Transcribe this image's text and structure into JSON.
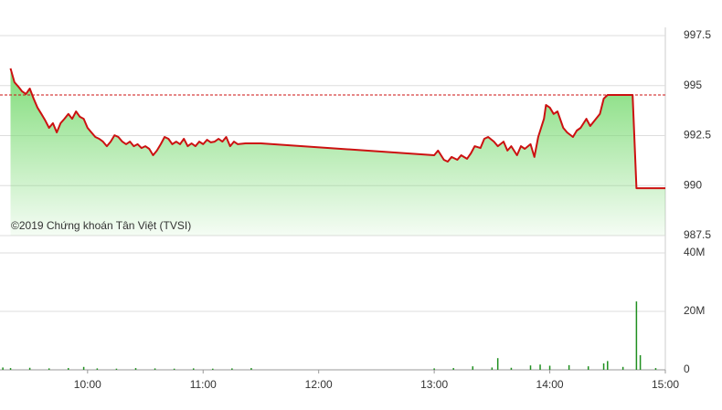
{
  "chart_data": [
    {
      "type": "line",
      "annotation": "©2019 Chứng khoán Tân Việt (TVSI)",
      "color": "#cc1111",
      "fill_color": "#7fdc78",
      "reference": 994.53,
      "reference_color": "#cc1111",
      "xlim": [
        "09:15",
        "15:00"
      ],
      "ylim": [
        987.5,
        997.5
      ],
      "yticks": [
        997.5,
        995,
        992.5,
        990,
        987.5
      ],
      "grid": true,
      "x": [
        "09:20",
        "09:22",
        "09:24",
        "09:26",
        "09:28",
        "09:30",
        "09:32",
        "09:34",
        "09:36",
        "09:38",
        "09:40",
        "09:42",
        "09:44",
        "09:46",
        "09:48",
        "09:50",
        "09:52",
        "09:54",
        "09:56",
        "09:58",
        "10:00",
        "10:02",
        "10:04",
        "10:06",
        "10:08",
        "10:10",
        "10:12",
        "10:14",
        "10:16",
        "10:18",
        "10:20",
        "10:22",
        "10:24",
        "10:26",
        "10:28",
        "10:30",
        "10:32",
        "10:34",
        "10:36",
        "10:38",
        "10:40",
        "10:42",
        "10:44",
        "10:46",
        "10:48",
        "10:50",
        "10:52",
        "10:54",
        "10:56",
        "10:58",
        "11:00",
        "11:02",
        "11:04",
        "11:06",
        "11:08",
        "11:10",
        "11:12",
        "11:14",
        "11:16",
        "11:18",
        "11:22",
        "11:30",
        "13:00",
        "13:02",
        "13:05",
        "13:07",
        "13:09",
        "13:12",
        "13:14",
        "13:17",
        "13:19",
        "13:21",
        "13:24",
        "13:26",
        "13:28",
        "13:31",
        "13:33",
        "13:36",
        "13:38",
        "13:40",
        "13:43",
        "13:45",
        "13:47",
        "13:50",
        "13:52",
        "13:54",
        "13:57",
        "13:58",
        "14:00",
        "14:02",
        "14:04",
        "14:07",
        "14:09",
        "14:12",
        "14:14",
        "14:16",
        "14:19",
        "14:21",
        "14:24",
        "14:26",
        "14:28",
        "14:30",
        "14:43",
        "14:45",
        "15:00"
      ],
      "values": [
        995.86,
        995.17,
        994.95,
        994.71,
        994.58,
        994.85,
        994.35,
        993.9,
        993.58,
        993.26,
        992.89,
        993.12,
        992.66,
        993.12,
        993.34,
        993.58,
        993.34,
        993.71,
        993.44,
        993.34,
        992.89,
        992.66,
        992.43,
        992.34,
        992.2,
        991.97,
        992.2,
        992.52,
        992.43,
        992.2,
        992.07,
        992.2,
        991.97,
        992.07,
        991.88,
        991.97,
        991.84,
        991.52,
        991.75,
        992.07,
        992.43,
        992.34,
        992.07,
        992.2,
        992.07,
        992.34,
        991.97,
        992.11,
        991.97,
        992.2,
        992.07,
        992.29,
        992.16,
        992.2,
        992.34,
        992.2,
        992.43,
        991.97,
        992.2,
        992.07,
        992.11,
        992.11,
        991.52,
        991.75,
        991.29,
        991.2,
        991.43,
        991.29,
        991.52,
        991.34,
        991.61,
        991.97,
        991.88,
        992.34,
        992.43,
        992.2,
        991.97,
        992.2,
        991.75,
        991.97,
        991.52,
        991.97,
        991.84,
        992.07,
        991.43,
        992.43,
        993.34,
        994.03,
        993.9,
        993.58,
        993.71,
        992.89,
        992.66,
        992.43,
        992.75,
        992.89,
        993.34,
        992.98,
        993.34,
        993.58,
        994.35,
        994.53,
        994.53,
        989.87,
        989.87
      ]
    },
    {
      "type": "bar",
      "color": "#1f8f1f",
      "xlim": [
        "09:15",
        "15:00"
      ],
      "xticks": [
        "10:00",
        "11:00",
        "12:00",
        "13:00",
        "14:00",
        "15:00"
      ],
      "ylim": [
        0,
        40
      ],
      "yticks": [
        {
          "value": 40,
          "label": "40M"
        },
        {
          "value": 20,
          "label": "20M"
        },
        0
      ],
      "grid": true,
      "x": [
        "09:16",
        "09:20",
        "09:30",
        "09:40",
        "09:50",
        "09:58",
        "10:05",
        "10:15",
        "10:25",
        "10:35",
        "10:45",
        "10:55",
        "11:05",
        "11:15",
        "11:25",
        "13:00",
        "13:10",
        "13:20",
        "13:30",
        "13:33",
        "13:40",
        "13:50",
        "13:55",
        "14:00",
        "14:10",
        "14:20",
        "14:28",
        "14:30",
        "14:38",
        "14:45",
        "14:47",
        "14:55"
      ],
      "values": [
        0.8,
        0.6,
        0.7,
        0.5,
        0.6,
        1.0,
        0.5,
        0.4,
        0.6,
        0.5,
        0.4,
        0.5,
        0.4,
        0.5,
        0.6,
        0.5,
        0.6,
        1.2,
        0.8,
        4.0,
        0.7,
        1.5,
        1.8,
        1.4,
        1.6,
        1.2,
        2.2,
        3.0,
        1.0,
        23.4,
        5.0,
        0.6
      ]
    }
  ]
}
